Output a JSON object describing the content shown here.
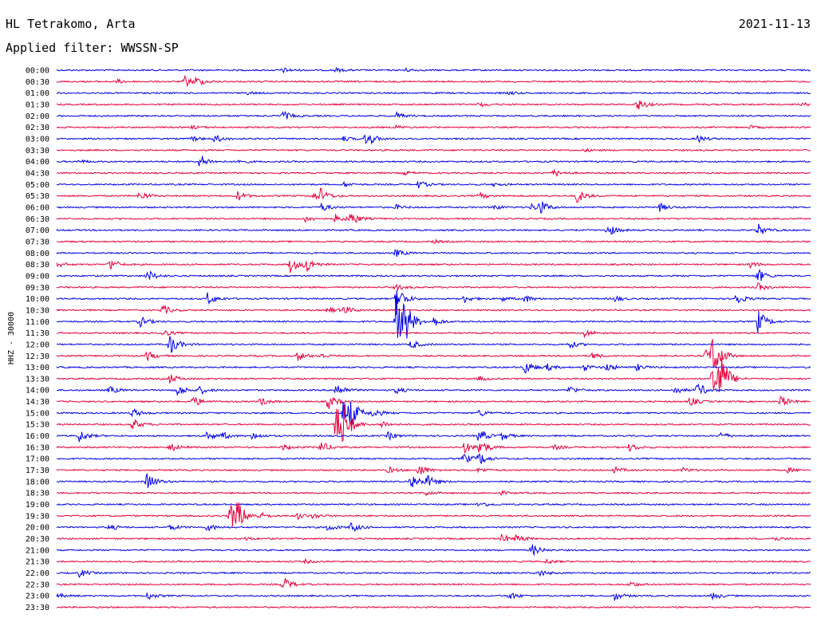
{
  "header": {
    "station": "HL Tetrakomo, Arta",
    "date": "2021-11-13",
    "filter": "Applied filter: WWSSN-SP"
  },
  "chart_data": {
    "type": "line",
    "ylabel": "HHZ - 30000",
    "colors": [
      "#0000e6",
      "#e6003c"
    ],
    "rows": [
      {
        "label": "00:00",
        "events": [
          [
            30,
            3
          ],
          [
            37,
            2.5
          ],
          [
            46,
            2.5
          ]
        ]
      },
      {
        "label": "00:30",
        "events": [
          [
            8,
            2.5
          ],
          [
            17,
            7
          ],
          [
            18.5,
            5
          ]
        ]
      },
      {
        "label": "01:00",
        "events": [
          [
            25,
            2
          ],
          [
            60,
            2
          ]
        ]
      },
      {
        "label": "01:30",
        "events": [
          [
            56,
            3
          ],
          [
            77,
            8
          ],
          [
            99,
            2
          ]
        ]
      },
      {
        "label": "02:00",
        "events": [
          [
            30,
            6
          ],
          [
            45,
            4
          ]
        ]
      },
      {
        "label": "02:30",
        "events": [
          [
            18,
            2
          ],
          [
            45,
            2
          ],
          [
            92,
            2
          ]
        ]
      },
      {
        "label": "03:00",
        "events": [
          [
            18,
            3
          ],
          [
            21,
            5
          ],
          [
            38,
            3
          ],
          [
            41,
            12
          ],
          [
            85,
            5
          ]
        ]
      },
      {
        "label": "03:30",
        "events": [
          [
            70,
            2
          ]
        ]
      },
      {
        "label": "04:00",
        "events": [
          [
            3,
            2
          ],
          [
            19,
            9
          ],
          [
            24,
            3
          ]
        ]
      },
      {
        "label": "04:30",
        "events": [
          [
            46,
            3
          ],
          [
            66,
            5
          ]
        ]
      },
      {
        "label": "05:00",
        "events": [
          [
            38,
            3
          ],
          [
            48,
            5
          ],
          [
            58,
            2
          ]
        ]
      },
      {
        "label": "05:30",
        "events": [
          [
            11,
            6
          ],
          [
            24,
            6
          ],
          [
            34,
            5
          ],
          [
            35,
            8
          ],
          [
            56,
            4
          ],
          [
            69,
            9
          ]
        ]
      },
      {
        "label": "06:00",
        "events": [
          [
            35,
            6
          ],
          [
            45,
            3
          ],
          [
            58,
            3
          ],
          [
            63,
            4
          ],
          [
            64,
            9
          ],
          [
            80,
            5
          ]
        ]
      },
      {
        "label": "06:30",
        "events": [
          [
            33,
            4
          ],
          [
            37,
            5
          ],
          [
            39,
            9
          ]
        ]
      },
      {
        "label": "07:00",
        "events": [
          [
            73,
            9
          ],
          [
            93,
            8
          ]
        ]
      },
      {
        "label": "07:30",
        "events": [
          [
            50,
            2
          ]
        ]
      },
      {
        "label": "08:00",
        "events": [
          [
            45,
            5
          ]
        ]
      },
      {
        "label": "08:30",
        "events": [
          [
            0,
            4
          ],
          [
            7,
            8
          ],
          [
            31,
            10
          ],
          [
            33,
            11
          ],
          [
            92,
            4
          ]
        ]
      },
      {
        "label": "09:00",
        "events": [
          [
            12,
            8
          ],
          [
            93,
            9
          ]
        ]
      },
      {
        "label": "09:30",
        "events": [
          [
            45,
            4
          ],
          [
            93,
            5
          ]
        ]
      },
      {
        "label": "10:00",
        "events": [
          [
            20,
            8
          ],
          [
            45,
            20
          ],
          [
            54,
            5
          ],
          [
            59,
            3
          ],
          [
            62,
            5
          ],
          [
            74,
            4
          ],
          [
            90,
            9
          ]
        ]
      },
      {
        "label": "10:30",
        "events": [
          [
            14,
            7
          ],
          [
            36,
            4
          ],
          [
            38,
            6
          ]
        ]
      },
      {
        "label": "11:00",
        "events": [
          [
            11,
            7
          ],
          [
            45,
            34
          ],
          [
            46,
            26
          ],
          [
            50,
            6
          ],
          [
            93,
            15
          ]
        ]
      },
      {
        "label": "11:30",
        "events": [
          [
            14,
            5
          ],
          [
            70,
            5
          ]
        ]
      },
      {
        "label": "12:00",
        "events": [
          [
            15,
            14
          ],
          [
            47,
            6
          ],
          [
            68,
            5
          ]
        ]
      },
      {
        "label": "12:30",
        "events": [
          [
            12,
            6
          ],
          [
            32,
            6
          ],
          [
            35,
            3
          ],
          [
            71,
            4
          ],
          [
            86,
            8
          ],
          [
            87,
            30
          ]
        ]
      },
      {
        "label": "13:00",
        "events": [
          [
            62,
            10
          ],
          [
            65,
            4
          ],
          [
            70,
            4
          ],
          [
            73,
            5
          ],
          [
            77,
            4
          ]
        ]
      },
      {
        "label": "13:30",
        "events": [
          [
            15,
            6
          ],
          [
            56,
            3
          ],
          [
            87,
            36
          ],
          [
            88,
            25
          ]
        ]
      },
      {
        "label": "14:00",
        "events": [
          [
            7,
            5
          ],
          [
            16,
            8
          ],
          [
            19,
            5
          ],
          [
            37,
            10
          ],
          [
            45,
            4
          ],
          [
            68,
            5
          ],
          [
            82,
            5
          ],
          [
            85,
            10
          ]
        ]
      },
      {
        "label": "14:30",
        "events": [
          [
            18,
            8
          ],
          [
            27,
            5
          ],
          [
            36,
            10
          ],
          [
            84,
            6
          ],
          [
            96,
            8
          ]
        ]
      },
      {
        "label": "15:00",
        "events": [
          [
            10,
            6
          ],
          [
            38,
            20
          ],
          [
            39,
            14
          ],
          [
            42,
            6
          ],
          [
            56,
            5
          ]
        ]
      },
      {
        "label": "15:30",
        "events": [
          [
            10,
            8
          ],
          [
            37,
            30
          ],
          [
            38,
            20
          ],
          [
            43,
            5
          ]
        ]
      },
      {
        "label": "16:00",
        "events": [
          [
            3,
            8
          ],
          [
            20,
            6
          ],
          [
            22,
            4
          ],
          [
            26,
            5
          ],
          [
            44,
            5
          ],
          [
            56,
            9
          ],
          [
            59,
            5
          ],
          [
            88,
            5
          ]
        ]
      },
      {
        "label": "16:30",
        "events": [
          [
            15,
            6
          ],
          [
            30,
            4
          ],
          [
            35,
            8
          ],
          [
            54,
            8
          ],
          [
            56,
            12
          ],
          [
            66,
            3
          ],
          [
            76,
            5
          ]
        ]
      },
      {
        "label": "17:00",
        "events": [
          [
            54,
            7
          ],
          [
            56,
            8
          ]
        ]
      },
      {
        "label": "17:30",
        "events": [
          [
            44,
            4
          ],
          [
            48,
            8
          ],
          [
            56,
            3
          ],
          [
            74,
            4
          ],
          [
            83,
            3
          ],
          [
            97,
            3
          ]
        ]
      },
      {
        "label": "18:00",
        "events": [
          [
            12,
            12
          ],
          [
            47,
            11
          ],
          [
            49,
            8
          ]
        ]
      },
      {
        "label": "18:30",
        "events": [
          [
            49,
            3
          ],
          [
            59,
            2
          ]
        ]
      },
      {
        "label": "19:00",
        "events": [
          [
            56,
            4
          ]
        ]
      },
      {
        "label": "19:30",
        "events": [
          [
            23,
            20
          ],
          [
            24,
            14
          ],
          [
            27,
            4
          ],
          [
            32,
            4
          ],
          [
            34,
            3
          ]
        ]
      },
      {
        "label": "20:00",
        "events": [
          [
            7,
            4
          ],
          [
            15,
            4
          ],
          [
            20,
            5
          ],
          [
            36,
            5
          ],
          [
            39,
            7
          ]
        ]
      },
      {
        "label": "20:30",
        "events": [
          [
            25,
            2
          ],
          [
            59,
            6
          ],
          [
            61,
            5
          ],
          [
            95,
            3
          ]
        ]
      },
      {
        "label": "21:00",
        "events": [
          [
            63,
            8
          ]
        ]
      },
      {
        "label": "21:30",
        "events": [
          [
            33,
            2
          ],
          [
            65,
            3
          ]
        ]
      },
      {
        "label": "22:00",
        "events": [
          [
            3,
            5
          ],
          [
            64,
            4
          ]
        ]
      },
      {
        "label": "22:30",
        "events": [
          [
            30,
            10
          ],
          [
            76,
            4
          ]
        ]
      },
      {
        "label": "23:00",
        "events": [
          [
            0,
            3
          ],
          [
            12,
            5
          ],
          [
            60,
            5
          ],
          [
            74,
            5
          ],
          [
            87,
            5
          ]
        ]
      },
      {
        "label": "23:30",
        "events": []
      }
    ]
  }
}
